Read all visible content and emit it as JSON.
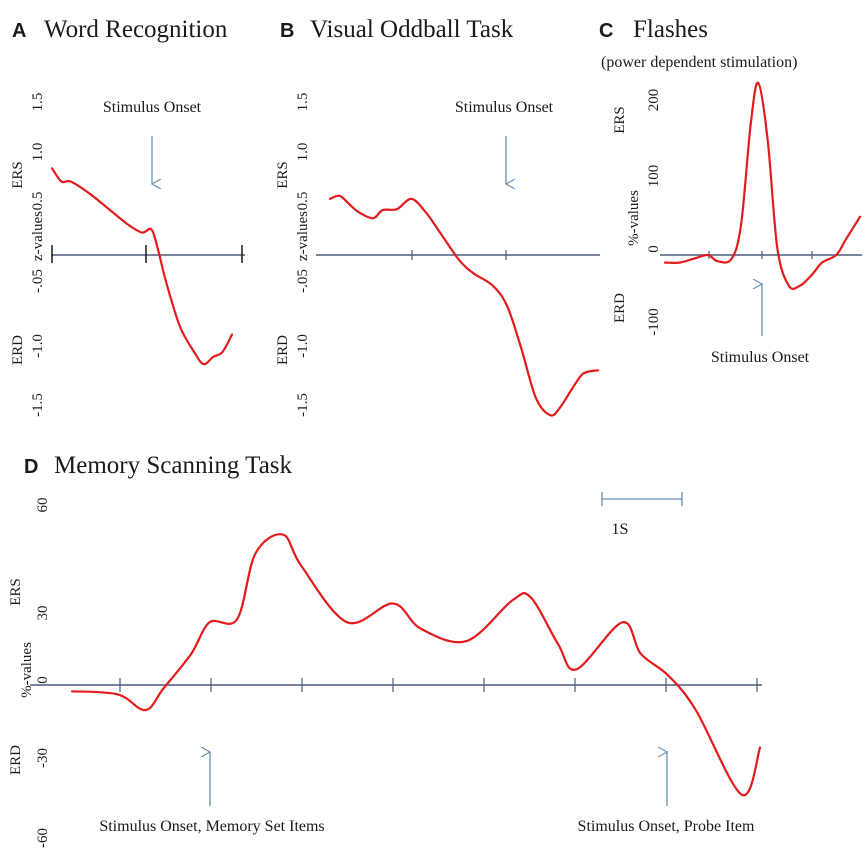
{
  "panels": [
    {
      "id": "A",
      "letter": "A",
      "title": "Word Recognition",
      "subtitle": "",
      "ylabel": "z-values",
      "ers_label": "ERS",
      "erd_label": "ERD",
      "yticks": [
        "1.5",
        "1.0",
        "0.5",
        "-.05",
        "-1.0",
        "-1.5"
      ],
      "annotations": [
        {
          "text": "Stimulus Onset"
        }
      ]
    },
    {
      "id": "B",
      "letter": "B",
      "title": "Visual Oddball Task",
      "subtitle": "",
      "ylabel": "z-values",
      "ers_label": "ERS",
      "erd_label": "ERD",
      "yticks": [
        "1.5",
        "1.0",
        "0.5",
        "-.05",
        "-1.0",
        "-1.5"
      ],
      "annotations": [
        {
          "text": "Stimulus Onset"
        }
      ]
    },
    {
      "id": "C",
      "letter": "C",
      "title": "Flashes",
      "subtitle": "(power dependent stimulation)",
      "ylabel": "%-values",
      "ers_label": "ERS",
      "erd_label": "ERD",
      "yticks": [
        "200",
        "100",
        "0",
        "-100"
      ],
      "annotations": [
        {
          "text": "Stimulus Onset"
        }
      ]
    },
    {
      "id": "D",
      "letter": "D",
      "title": "Memory Scanning Task",
      "subtitle": "",
      "ylabel": "%-values",
      "ers_label": "ERS",
      "erd_label": "ERD",
      "yticks": [
        "60",
        "30",
        "0",
        "-30",
        "-60"
      ],
      "annotations": [
        {
          "text": "Stimulus Onset, Memory Set Items"
        },
        {
          "text": "Stimulus Onset, Probe Item"
        }
      ],
      "scale_bar_label": "1S"
    }
  ],
  "colors": {
    "curve": "#e41a1c",
    "axis": "#4a5c7a",
    "arrow": "#6a8fb0",
    "text": "#1a1a1a"
  },
  "chart_data": [
    {
      "type": "line",
      "title": "Word Recognition",
      "ylabel": "z-values",
      "ylim": [
        -1.5,
        1.5
      ],
      "yticks": [
        1.5,
        1.0,
        0.5,
        -0.05,
        -1.0,
        -1.5
      ],
      "x_unit": "s",
      "stimulus_onset_x": 0,
      "series": [
        {
          "x": [
            -1.0,
            -0.9,
            -0.8,
            -0.6,
            -0.4,
            -0.2,
            -0.05,
            0.05,
            0.12,
            0.2,
            0.35,
            0.5,
            0.6,
            0.7,
            0.8,
            0.9
          ],
          "y": [
            0.85,
            0.72,
            0.72,
            0.6,
            0.45,
            0.3,
            0.22,
            0.25,
            0.05,
            -0.25,
            -0.7,
            -0.95,
            -1.07,
            -1.0,
            -0.95,
            -0.78
          ]
        }
      ]
    },
    {
      "type": "line",
      "title": "Visual Oddball Task",
      "ylabel": "z-values",
      "ylim": [
        -1.5,
        1.5
      ],
      "yticks": [
        1.5,
        1.0,
        0.5,
        -0.05,
        -1.0,
        -1.5
      ],
      "x_unit": "s",
      "stimulus_onset_x": 0,
      "series": [
        {
          "x": [
            -1.85,
            -1.75,
            -1.65,
            -1.55,
            -1.4,
            -1.3,
            -1.15,
            -1.0,
            -0.85,
            -0.7,
            -0.5,
            -0.35,
            -0.15,
            0.0,
            0.15,
            0.3,
            0.45,
            0.55,
            0.7,
            0.8,
            0.95
          ],
          "y": [
            0.55,
            0.58,
            0.5,
            0.42,
            0.36,
            0.44,
            0.45,
            0.55,
            0.42,
            0.22,
            -0.05,
            -0.18,
            -0.3,
            -0.5,
            -0.92,
            -1.4,
            -1.57,
            -1.5,
            -1.28,
            -1.16,
            -1.13
          ]
        }
      ]
    },
    {
      "type": "line",
      "title": "Flashes",
      "ylabel": "%-values",
      "ylim": [
        -100,
        200
      ],
      "yticks": [
        200,
        100,
        0,
        -100
      ],
      "x_unit": "s",
      "stimulus_onset_x": 0,
      "series": [
        {
          "x": [
            -1.0,
            -0.85,
            -0.7,
            -0.55,
            -0.45,
            -0.3,
            -0.2,
            -0.1,
            -0.02,
            0.08,
            0.18,
            0.3,
            0.42,
            0.55,
            0.65,
            0.8,
            0.9,
            1.05
          ],
          "y": [
            -10,
            -10,
            -5,
            0,
            -8,
            -5,
            40,
            170,
            225,
            150,
            10,
            -40,
            -40,
            -25,
            -10,
            0,
            20,
            50
          ]
        }
      ]
    },
    {
      "type": "line",
      "title": "Memory Scanning Task",
      "ylabel": "%-values",
      "ylim": [
        -60,
        60
      ],
      "yticks": [
        60,
        30,
        0,
        -30,
        -60
      ],
      "x_unit": "s",
      "memory_set_onset_x": 0,
      "probe_onset_x": 5,
      "scale_bar_s": 1,
      "series": [
        {
          "x": [
            -1.5,
            -1.0,
            -0.7,
            -0.5,
            -0.2,
            0.0,
            0.3,
            0.5,
            0.8,
            1.0,
            1.5,
            2.0,
            2.3,
            2.8,
            3.3,
            3.5,
            3.8,
            4.0,
            4.5,
            4.7,
            5.0,
            5.3,
            5.8,
            6.0
          ],
          "y": [
            -2,
            -3,
            -8,
            -1,
            10,
            20,
            21,
            42,
            48,
            38,
            20,
            26,
            18,
            14,
            27,
            28,
            13,
            5,
            20,
            10,
            3,
            -8,
            -35,
            -20
          ]
        }
      ]
    }
  ]
}
